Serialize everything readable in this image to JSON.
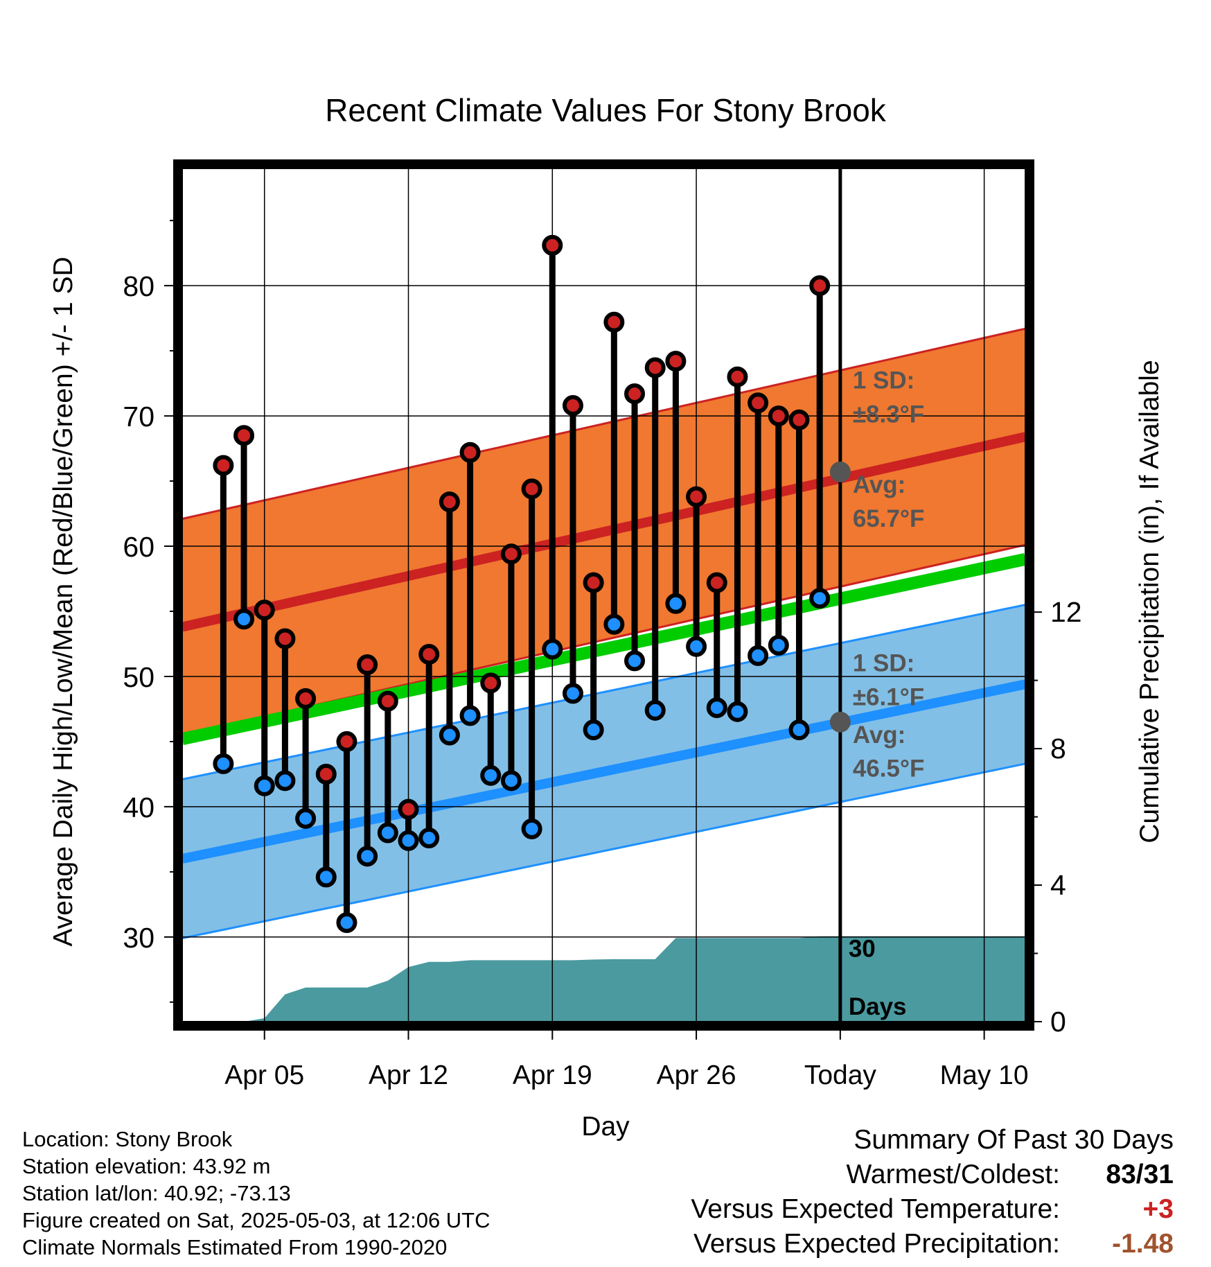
{
  "chart_data": {
    "type": "line",
    "title": "Recent Climate Values For Stony Brook",
    "xlabel": "Day",
    "ylabel_left": "Average Daily High/Low/Mean (Red/Blue/Green) +/- 1 SD",
    "ylabel_right": "Cumulative Precipitation (in), If Available",
    "x_range": [
      "2025-04-01",
      "2025-05-12"
    ],
    "ylim_left": [
      23.5,
      89
    ],
    "ylim_right": [
      0,
      25
    ],
    "grid": true,
    "x_ticks": [
      {
        "date": "2025-04-05",
        "label": "Apr 05"
      },
      {
        "date": "2025-04-12",
        "label": "Apr 12"
      },
      {
        "date": "2025-04-19",
        "label": "Apr 19"
      },
      {
        "date": "2025-04-26",
        "label": "Apr 26"
      },
      {
        "date": "2025-05-03",
        "label": "Today"
      },
      {
        "date": "2025-05-10",
        "label": "May 10"
      }
    ],
    "y_ticks_left": [
      30,
      40,
      50,
      60,
      70,
      80
    ],
    "y_ticks_right": [
      0,
      4,
      8,
      12
    ],
    "dates": [
      "2025-04-03",
      "2025-04-04",
      "2025-04-05",
      "2025-04-06",
      "2025-04-07",
      "2025-04-08",
      "2025-04-09",
      "2025-04-10",
      "2025-04-11",
      "2025-04-12",
      "2025-04-13",
      "2025-04-14",
      "2025-04-15",
      "2025-04-16",
      "2025-04-17",
      "2025-04-18",
      "2025-04-19",
      "2025-04-20",
      "2025-04-21",
      "2025-04-22",
      "2025-04-23",
      "2025-04-24",
      "2025-04-25",
      "2025-04-26",
      "2025-04-27",
      "2025-04-28",
      "2025-04-29",
      "2025-04-30",
      "2025-05-01",
      "2025-05-02"
    ],
    "series": [
      {
        "name": "High",
        "color": "#cc2222",
        "values": [
          66.2,
          68.5,
          55.1,
          52.9,
          48.3,
          42.5,
          45,
          50.9,
          48.1,
          39.8,
          51.7,
          63.4,
          67.2,
          49.5,
          59.4,
          64.4,
          83.1,
          70.8,
          57.2,
          77.2,
          71.7,
          73.7,
          74.2,
          63.8,
          57.2,
          73,
          71,
          70,
          69.7,
          80
        ]
      },
      {
        "name": "Low",
        "color": "#1e90ff",
        "values": [
          43.3,
          54.4,
          41.6,
          42,
          39.1,
          34.6,
          31.1,
          36.2,
          38,
          37.4,
          37.6,
          45.5,
          47,
          42.4,
          42,
          38.3,
          52.1,
          48.7,
          45.9,
          54,
          51.2,
          47.4,
          55.6,
          52.3,
          47.6,
          47.3,
          51.6,
          52.4,
          45.9,
          56
        ]
      }
    ],
    "normal_bands": {
      "high": {
        "avg_start": 53.8,
        "avg_end": 68.4,
        "sd": 8.3,
        "color": "#f07830"
      },
      "low": {
        "avg_start": 36.0,
        "avg_end": 49.4,
        "sd": 6.1,
        "color": "#82bfe6"
      },
      "mean_line": {
        "start": 45.2,
        "end": 59.0,
        "color": "#00cc00"
      }
    },
    "precipitation": {
      "color": "#4a9aa0",
      "dates": [
        "2025-04-01",
        "2025-04-04",
        "2025-04-05",
        "2025-04-06",
        "2025-04-07",
        "2025-04-08",
        "2025-04-09",
        "2025-04-10",
        "2025-04-11",
        "2025-04-12",
        "2025-04-13",
        "2025-04-14",
        "2025-04-15",
        "2025-04-16",
        "2025-04-17",
        "2025-04-18",
        "2025-04-19",
        "2025-04-20",
        "2025-04-21",
        "2025-04-22",
        "2025-04-23",
        "2025-04-24",
        "2025-04-25",
        "2025-04-26",
        "2025-04-27",
        "2025-04-28",
        "2025-04-29",
        "2025-04-30",
        "2025-05-01",
        "2025-05-02",
        "2025-05-03",
        "2025-05-12"
      ],
      "values": [
        0,
        0,
        0.1,
        0.8,
        1.0,
        1.0,
        1.0,
        1.0,
        1.2,
        1.6,
        1.75,
        1.75,
        1.8,
        1.8,
        1.8,
        1.8,
        1.8,
        1.8,
        1.82,
        1.83,
        1.83,
        1.83,
        2.45,
        2.45,
        2.45,
        2.45,
        2.45,
        2.45,
        2.45,
        2.5,
        2.5,
        2.5
      ]
    },
    "today_date": "2025-05-03",
    "annotations": {
      "high_sd_label": "1 SD:",
      "high_sd_value": "±8.3°F",
      "high_avg_label": "Avg:",
      "high_avg_value": "65.7°F",
      "high_avg_point": 65.7,
      "low_sd_label": "1 SD:",
      "low_sd_value": "±6.1°F",
      "low_avg_label": "Avg:",
      "low_avg_value": "46.5°F",
      "low_avg_point": 46.5,
      "days_count": "30",
      "days_label": "Days"
    }
  },
  "footer": {
    "location": "Location: Stony Brook",
    "elevation": "Station elevation: 43.92 m",
    "latlon": "Station lat/lon: 40.92; -73.13",
    "created": "Figure created on Sat, 2025-05-03, at 12:06 UTC",
    "normals": "Climate Normals Estimated From 1990-2020"
  },
  "summary": {
    "title": "Summary Of Past 30 Days",
    "warmest_label": "Warmest/Coldest:",
    "warmest_value": "83/31",
    "temp_label": "Versus Expected Temperature:",
    "temp_value": "+3",
    "temp_color": "#cc2222",
    "precip_label": "Versus Expected Precipitation:",
    "precip_value": "-1.48",
    "precip_color": "#a0522d"
  }
}
